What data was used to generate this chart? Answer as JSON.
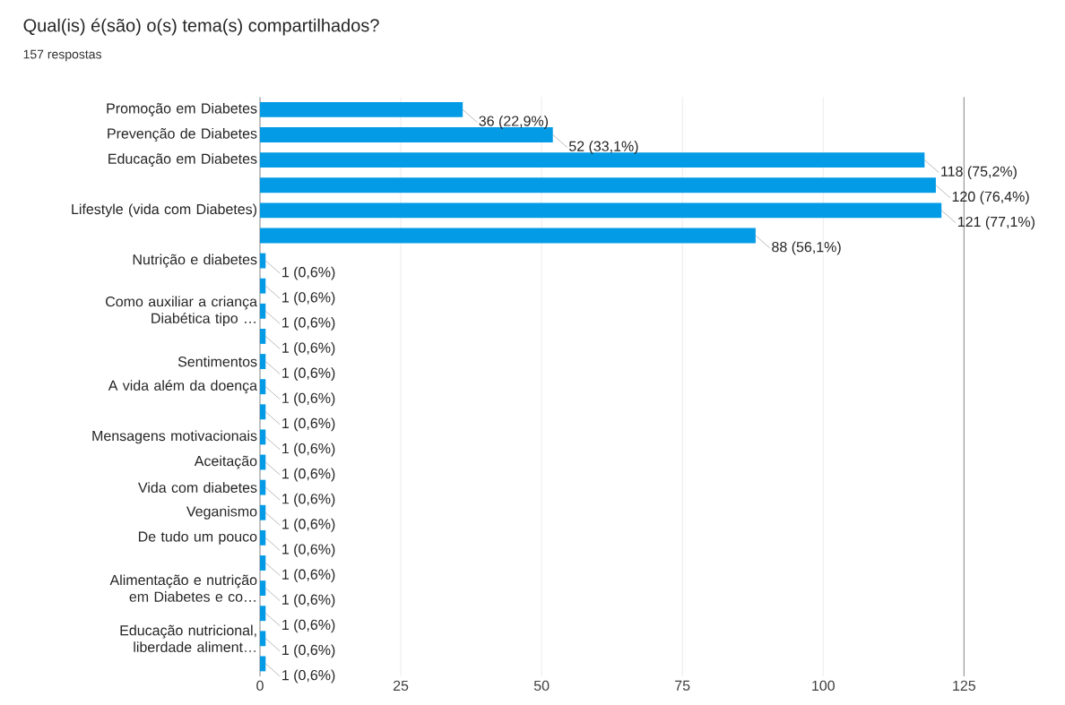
{
  "chart_data": {
    "type": "bar",
    "orientation": "horizontal",
    "title": "Qual(is) é(são) o(s) tema(s) compartilhados?",
    "subtitle": "157 respostas",
    "categories": [
      "Promoção em Diabetes",
      "Prevenção de Diabetes",
      "Educação em Diabetes",
      null,
      "Lifestyle (vida com Diabetes)",
      null,
      "Nutrição e diabetes",
      null,
      "Como auxiliar a criança Diabética tipo …",
      null,
      "Sentimentos",
      "A vida além da doença",
      null,
      "Mensagens motivacionais",
      "Aceitação",
      "Vida com diabetes",
      "Veganismo",
      "De tudo um pouco",
      null,
      "Alimentação e nutrição em Diabetes e co…",
      null,
      "Educação nutricional, liberdade aliment…",
      null
    ],
    "values": [
      36,
      52,
      118,
      120,
      121,
      88,
      1,
      1,
      1,
      1,
      1,
      1,
      1,
      1,
      1,
      1,
      1,
      1,
      1,
      1,
      1,
      1,
      1
    ],
    "value_labels": [
      "36 (22,9%)",
      "52 (33,1%)",
      "118 (75,2%)",
      "120 (76,4%)",
      "121 (77,1%)",
      "88 (56,1%)",
      "1 (0,6%)",
      "1 (0,6%)",
      "1 (0,6%)",
      "1 (0,6%)",
      "1 (0,6%)",
      "1 (0,6%)",
      "1 (0,6%)",
      "1 (0,6%)",
      "1 (0,6%)",
      "1 (0,6%)",
      "1 (0,6%)",
      "1 (0,6%)",
      "1 (0,6%)",
      "1 (0,6%)",
      "1 (0,6%)",
      "1 (0,6%)",
      "1 (0,6%)"
    ],
    "color": "#039be5",
    "xlim": [
      0,
      125
    ],
    "xticks": [
      0,
      25,
      50,
      75,
      100,
      125
    ],
    "grid": "x"
  }
}
